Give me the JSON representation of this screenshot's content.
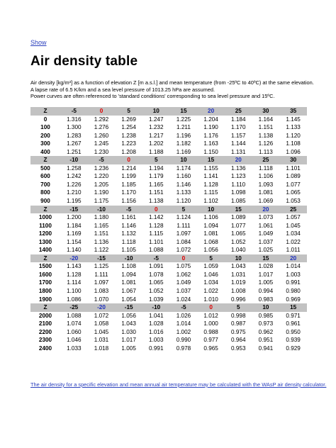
{
  "nav": {
    "show_label": "Show"
  },
  "title": "Air density table",
  "intro_lines": [
    "Air density [kg/m³] as a function of elevation Z [m a.s.l.] and mean temperature (from -25ºC to 40ºC) at the same elevation.",
    "A lapse rate of 6.5 K/km and a sea level pressure of 1013.25 hPa are assumed.",
    "Power curves are often referenced to 'standard conditions' corresponding to sea level pressure and 15ºC."
  ],
  "colors": {
    "header_bg": "#c2c2c2",
    "red_value": "#e00000",
    "blue_value": "#1c2fbf",
    "link": "#2a3fbd"
  },
  "blocks": [
    {
      "header": [
        "Z",
        "-5",
        "0",
        "5",
        "10",
        "15",
        "20",
        "25",
        "30",
        "35"
      ],
      "red_col": 2,
      "blue_col": 6,
      "rows": [
        [
          "0",
          "1.316",
          "1.292",
          "1.269",
          "1.247",
          "1.225",
          "1.204",
          "1.184",
          "1.164",
          "1.145"
        ],
        [
          "100",
          "1.300",
          "1.276",
          "1.254",
          "1.232",
          "1.211",
          "1.190",
          "1.170",
          "1.151",
          "1.133"
        ],
        [
          "200",
          "1.283",
          "1.260",
          "1.238",
          "1.217",
          "1.196",
          "1.176",
          "1.157",
          "1.138",
          "1.120"
        ],
        [
          "300",
          "1.267",
          "1.245",
          "1.223",
          "1.202",
          "1.182",
          "1.163",
          "1.144",
          "1.126",
          "1.108"
        ],
        [
          "400",
          "1.251",
          "1.230",
          "1.208",
          "1.188",
          "1.169",
          "1.150",
          "1.131",
          "1.113",
          "1.096"
        ]
      ]
    },
    {
      "header": [
        "Z",
        "-10",
        "-5",
        "0",
        "5",
        "10",
        "15",
        "20",
        "25",
        "30"
      ],
      "red_col": 3,
      "blue_col": 7,
      "rows": [
        [
          "500",
          "1.258",
          "1.236",
          "1.214",
          "1.194",
          "1.174",
          "1.155",
          "1.136",
          "1.118",
          "1.101"
        ],
        [
          "600",
          "1.242",
          "1.220",
          "1.199",
          "1.179",
          "1.160",
          "1.141",
          "1.123",
          "1.106",
          "1.089"
        ],
        [
          "700",
          "1.226",
          "1.205",
          "1.185",
          "1.165",
          "1.146",
          "1.128",
          "1.110",
          "1.093",
          "1.077"
        ],
        [
          "800",
          "1.210",
          "1.190",
          "1.170",
          "1.151",
          "1.133",
          "1.115",
          "1.098",
          "1.081",
          "1.065"
        ],
        [
          "900",
          "1.195",
          "1.175",
          "1.156",
          "1.138",
          "1.120",
          "1.102",
          "1.085",
          "1.069",
          "1.053"
        ]
      ]
    },
    {
      "header": [
        "Z",
        "-15",
        "-10",
        "-5",
        "0",
        "5",
        "10",
        "15",
        "20",
        "25"
      ],
      "red_col": 4,
      "blue_col": 8,
      "rows": [
        [
          "1000",
          "1.200",
          "1.180",
          "1.161",
          "1.142",
          "1.124",
          "1.106",
          "1.089",
          "1.073",
          "1.057"
        ],
        [
          "1100",
          "1.184",
          "1.165",
          "1.146",
          "1.128",
          "1.111",
          "1.094",
          "1.077",
          "1.061",
          "1.045"
        ],
        [
          "1200",
          "1.169",
          "1.151",
          "1.132",
          "1.115",
          "1.097",
          "1.081",
          "1.065",
          "1.049",
          "1.034"
        ],
        [
          "1300",
          "1.154",
          "1.136",
          "1.118",
          "1.101",
          "1.084",
          "1.068",
          "1.052",
          "1.037",
          "1.022"
        ],
        [
          "1400",
          "1.140",
          "1.122",
          "1.105",
          "1.088",
          "1.072",
          "1.056",
          "1.040",
          "1.025",
          "1.011"
        ]
      ]
    },
    {
      "header": [
        "Z",
        "-20",
        "-15",
        "-10",
        "-5",
        "0",
        "5",
        "10",
        "15",
        "20"
      ],
      "red_col": 5,
      "blue_col": 9,
      "blue_col_2": 1,
      "rows": [
        [
          "1500",
          "1.143",
          "1.125",
          "1.108",
          "1.091",
          "1.075",
          "1.059",
          "1.043",
          "1.028",
          "1.014"
        ],
        [
          "1600",
          "1.128",
          "1.111",
          "1.094",
          "1.078",
          "1.062",
          "1.046",
          "1.031",
          "1.017",
          "1.003"
        ],
        [
          "1700",
          "1.114",
          "1.097",
          "1.081",
          "1.065",
          "1.049",
          "1.034",
          "1.019",
          "1.005",
          "0.991"
        ],
        [
          "1800",
          "1.100",
          "1.083",
          "1.067",
          "1.052",
          "1.037",
          "1.022",
          "1.008",
          "0.994",
          "0.980"
        ],
        [
          "1900",
          "1.086",
          "1.070",
          "1.054",
          "1.039",
          "1.024",
          "1.010",
          "0.996",
          "0.983",
          "0.969"
        ]
      ]
    },
    {
      "header": [
        "Z",
        "-25",
        "-20",
        "-15",
        "-10",
        "-5",
        "0",
        "5",
        "10",
        "15"
      ],
      "red_col": 6,
      "blue_col": 2,
      "rows": [
        [
          "2000",
          "1.088",
          "1.072",
          "1.056",
          "1.041",
          "1.026",
          "1.012",
          "0.998",
          "0.985",
          "0.971"
        ],
        [
          "2100",
          "1.074",
          "1.058",
          "1.043",
          "1.028",
          "1.014",
          "1.000",
          "0.987",
          "0.973",
          "0.961"
        ],
        [
          "2200",
          "1.060",
          "1.045",
          "1.030",
          "1.016",
          "1.002",
          "0.988",
          "0.975",
          "0.962",
          "0.950"
        ],
        [
          "2300",
          "1.046",
          "1.031",
          "1.017",
          "1.003",
          "0.990",
          "0.977",
          "0.964",
          "0.951",
          "0.939"
        ],
        [
          "2400",
          "1.033",
          "1.018",
          "1.005",
          "0.991",
          "0.978",
          "0.965",
          "0.953",
          "0.941",
          "0.929"
        ]
      ]
    }
  ],
  "footer_link": "The air density for a specific elevation and mean annual air temperature may be calculated with the WAsP air density calculator."
}
